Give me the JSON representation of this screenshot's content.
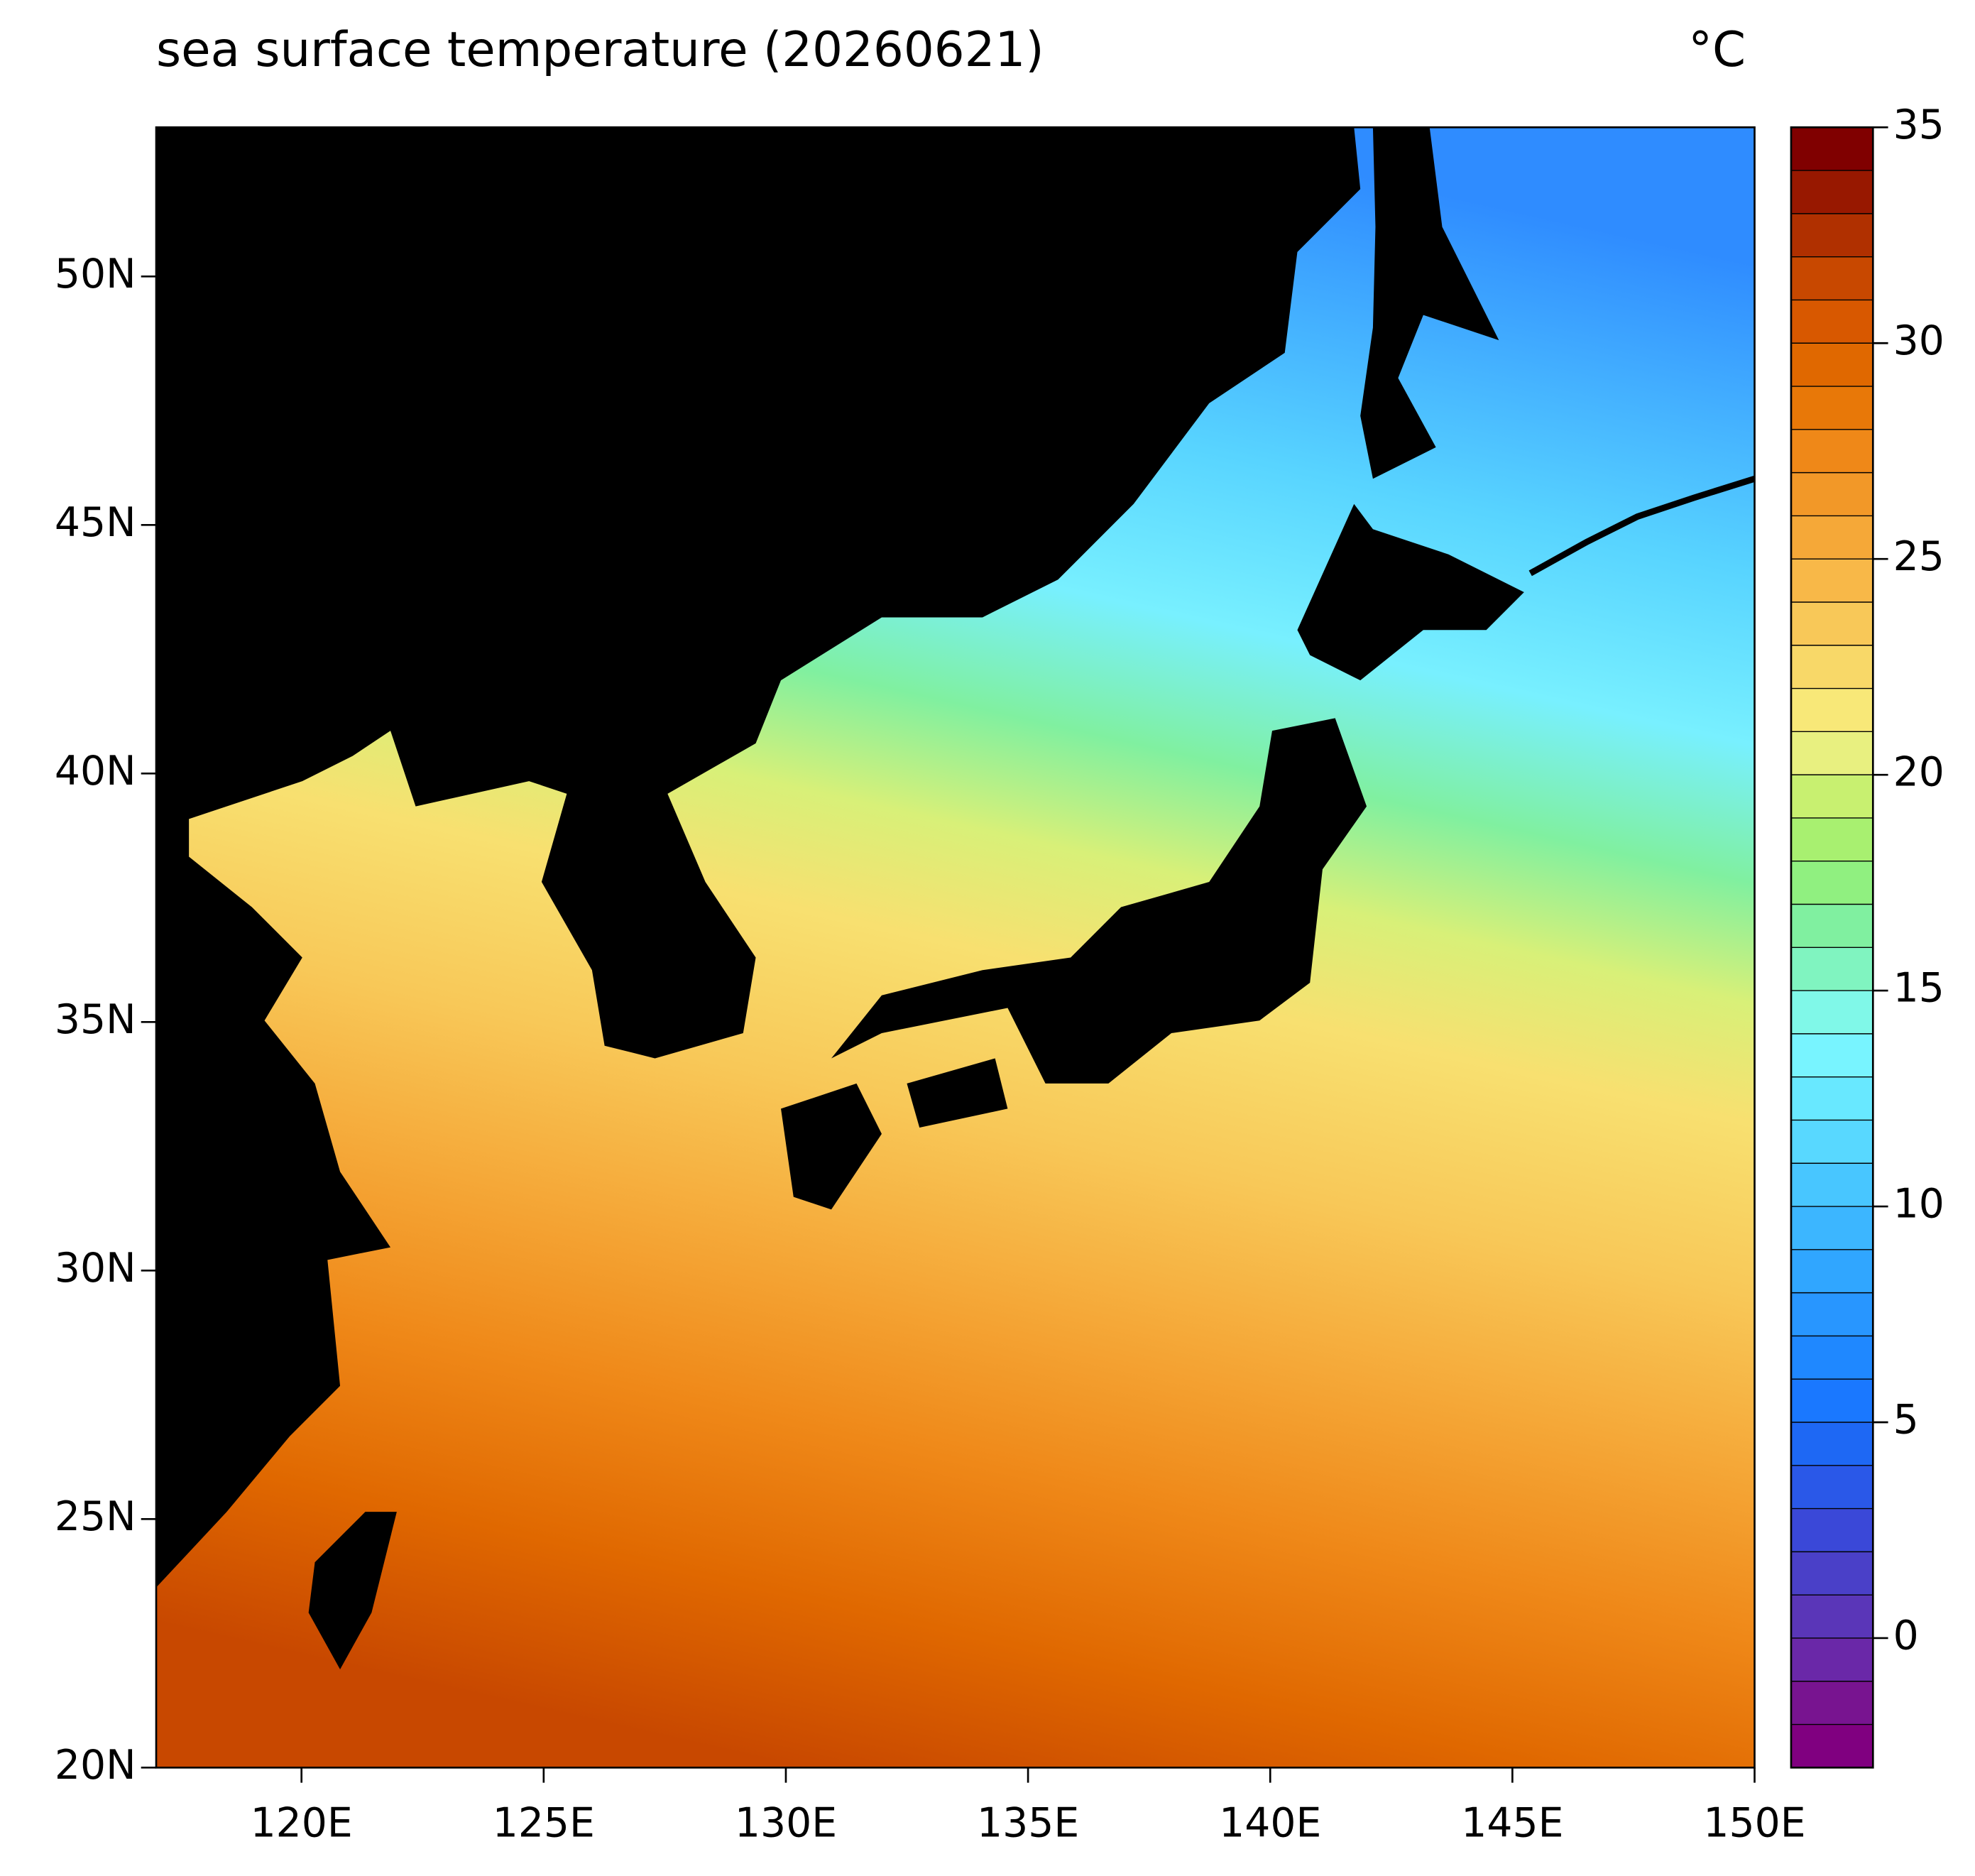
{
  "chart_data": {
    "type": "contourf-map",
    "title": "sea surface temperature (20260621)",
    "unit": "°C",
    "xlim": [
      117,
      150
    ],
    "ylim": [
      20,
      53
    ],
    "xticks": [
      {
        "value": 120,
        "label": "120E"
      },
      {
        "value": 125,
        "label": "125E"
      },
      {
        "value": 130,
        "label": "130E"
      },
      {
        "value": 135,
        "label": "135E"
      },
      {
        "value": 140,
        "label": "140E"
      },
      {
        "value": 145,
        "label": "145E"
      },
      {
        "value": 150,
        "label": "150E"
      }
    ],
    "yticks": [
      {
        "value": 20,
        "label": "20N"
      },
      {
        "value": 25,
        "label": "25N"
      },
      {
        "value": 30,
        "label": "30N"
      },
      {
        "value": 35,
        "label": "35N"
      },
      {
        "value": 40,
        "label": "40N"
      },
      {
        "value": 45,
        "label": "45N"
      },
      {
        "value": 50,
        "label": "50N"
      }
    ],
    "colorbar": {
      "lim": [
        -3,
        35
      ],
      "ticks": [
        0,
        5,
        10,
        15,
        20,
        25,
        30,
        35
      ],
      "levels": [
        -3,
        -2,
        -1,
        0,
        1,
        2,
        3,
        4,
        5,
        6,
        7,
        8,
        9,
        10,
        11,
        12,
        13,
        14,
        15,
        16,
        17,
        18,
        19,
        20,
        21,
        22,
        23,
        24,
        25,
        26,
        27,
        28,
        29,
        30,
        31,
        32,
        33,
        34,
        35
      ],
      "colors": [
        "#800080",
        "#781490",
        "#6a28a8",
        "#5a36b8",
        "#4a40c8",
        "#3a48d8",
        "#2a58e8",
        "#1e68f4",
        "#1a78ff",
        "#1f88ff",
        "#2896ff",
        "#30a6ff",
        "#3cb6ff",
        "#48c6ff",
        "#58d8ff",
        "#68e8ff",
        "#78f4ff",
        "#80f8e8",
        "#80f4c0",
        "#80f0a0",
        "#90f080",
        "#a8f070",
        "#c8f070",
        "#e8f080",
        "#f8e878",
        "#f8d868",
        "#f8c858",
        "#f8b848",
        "#f5a838",
        "#f29828",
        "#ef8818",
        "#e87808",
        "#e06800",
        "#d85800",
        "#c84800",
        "#b03000",
        "#981800",
        "#800000"
      ]
    }
  }
}
